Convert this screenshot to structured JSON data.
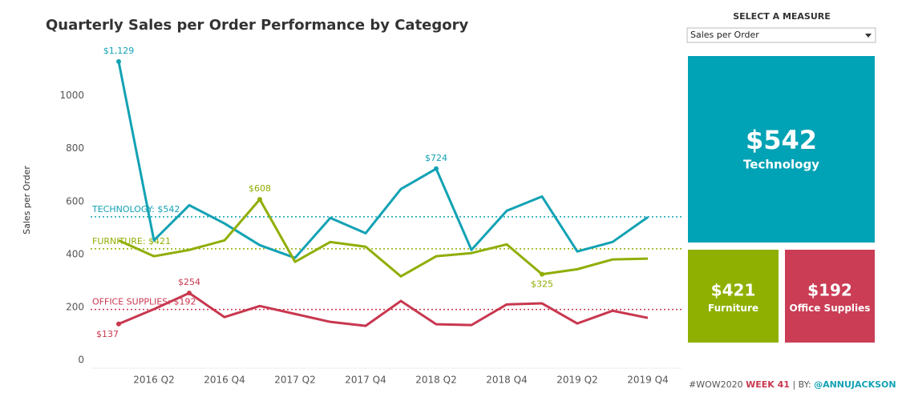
{
  "chart_data": [
    {
      "type": "line",
      "title": "Quarterly Sales per Order Performance by Category",
      "y_label": "Sales per Order",
      "categories": [
        null,
        "2016 Q2",
        null,
        "2016 Q4",
        null,
        "2017 Q2",
        null,
        "2017 Q4",
        null,
        "2018 Q2",
        null,
        "2018 Q4",
        null,
        "2019 Q2",
        null,
        "2019 Q4"
      ],
      "series": [
        {
          "name": "Technology",
          "color": "#12a2b4",
          "values": [
            1129,
            453,
            586,
            517,
            435,
            387,
            538,
            480,
            647,
            724,
            417,
            565,
            619,
            411,
            447,
            541
          ],
          "value_labels": [
            "$1,129",
            null,
            null,
            null,
            null,
            null,
            null,
            null,
            null,
            "$724",
            null,
            null,
            null,
            null,
            null,
            null
          ]
        },
        {
          "name": "Furniture",
          "color": "#8fae04",
          "values": [
            453,
            393,
            417,
            453,
            608,
            372,
            447,
            429,
            317,
            393,
            405,
            438,
            325,
            344,
            381,
            384
          ],
          "value_labels": [
            null,
            null,
            null,
            null,
            "$608",
            null,
            null,
            null,
            null,
            null,
            null,
            null,
            "$325",
            null,
            null,
            null
          ]
        },
        {
          "name": "Office Supplies",
          "color": "#c8374f",
          "values": [
            137,
            193,
            254,
            163,
            205,
            175,
            145,
            130,
            224,
            136,
            133,
            211,
            215,
            139,
            187,
            160
          ],
          "value_labels": [
            "$137",
            null,
            "$254",
            null,
            null,
            null,
            null,
            null,
            null,
            null,
            null,
            null,
            null,
            null,
            null,
            null
          ]
        }
      ],
      "reference_lines": [
        {
          "label": "TECHNOLOGY: $542",
          "value": 542,
          "color": "#12a2b4"
        },
        {
          "label": "FURNITURE: $421",
          "value": 421,
          "color": "#8fae04"
        },
        {
          "label": "OFFICE SUPPLIES: $192",
          "value": 192,
          "color": "#c8374f"
        }
      ],
      "ylim": [
        -30,
        1165
      ],
      "yticks": [
        0,
        200,
        400,
        600,
        800,
        1000
      ],
      "grid": false
    },
    {
      "type": "treemap",
      "categories": [
        "Technology",
        "Furniture",
        "Office Supplies"
      ],
      "values": [
        542,
        421,
        192
      ],
      "value_labels": [
        "$542",
        "$421",
        "$192"
      ],
      "colors": [
        "#00a2b5",
        "#8fb000",
        "#ca3d55"
      ]
    }
  ],
  "control": {
    "label": "SELECT A MEASURE",
    "selected": "Sales per Order"
  },
  "footer": {
    "parts": [
      "#WOW2020",
      "WEEK 41",
      "| BY:",
      "@ANNUJACKSON"
    ]
  }
}
